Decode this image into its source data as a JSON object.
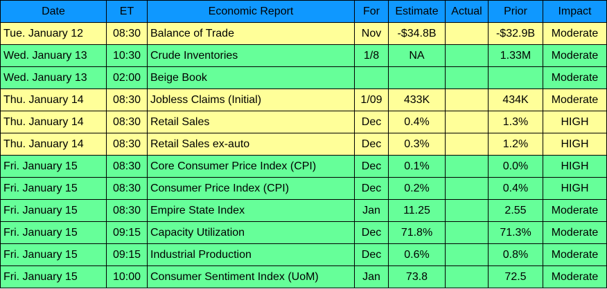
{
  "columns": {
    "date": "Date",
    "et": "ET",
    "report": "Economic Report",
    "for": "For",
    "estimate": "Estimate",
    "actual": "Actual",
    "prior": "Prior",
    "impact": "Impact"
  },
  "colors": {
    "header": "#0f98ff",
    "yellow_row": "#ffff99",
    "green_row": "#66ff99"
  },
  "rows": [
    {
      "date": "Tue. January 12",
      "et": "08:30",
      "report": "Balance of Trade",
      "for": "Nov",
      "estimate": "-$34.8B",
      "actual": "",
      "prior": "-$32.9B",
      "impact": "Moderate",
      "color": "yellow"
    },
    {
      "date": "Wed. January 13",
      "et": "10:30",
      "report": "Crude Inventories",
      "for": "1/8",
      "estimate": "NA",
      "actual": "",
      "prior": "1.33M",
      "impact": "Moderate",
      "color": "green"
    },
    {
      "date": "Wed. January 13",
      "et": "02:00",
      "report": "Beige Book",
      "for": "",
      "estimate": "",
      "actual": "",
      "prior": "",
      "impact": "Moderate",
      "color": "green"
    },
    {
      "date": "Thu. January 14",
      "et": "08:30",
      "report": "Jobless Claims (Initial)",
      "for": "1/09",
      "estimate": "433K",
      "actual": "",
      "prior": "434K",
      "impact": "Moderate",
      "color": "yellow"
    },
    {
      "date": "Thu. January 14",
      "et": "08:30",
      "report": "Retail Sales",
      "for": "Dec",
      "estimate": "0.4%",
      "actual": "",
      "prior": "1.3%",
      "impact": "HIGH",
      "color": "yellow"
    },
    {
      "date": "Thu. January 14",
      "et": "08:30",
      "report": "Retail Sales ex-auto",
      "for": "Dec",
      "estimate": "0.3%",
      "actual": "",
      "prior": "1.2%",
      "impact": "HIGH",
      "color": "yellow"
    },
    {
      "date": "Fri. January 15",
      "et": "08:30",
      "report": "Core Consumer Price Index (CPI)",
      "for": "Dec",
      "estimate": "0.1%",
      "actual": "",
      "prior": "0.0%",
      "impact": "HIGH",
      "color": "green"
    },
    {
      "date": "Fri. January 15",
      "et": "08:30",
      "report": "Consumer Price Index (CPI)",
      "for": "Dec",
      "estimate": "0.2%",
      "actual": "",
      "prior": "0.4%",
      "impact": "HIGH",
      "color": "green"
    },
    {
      "date": "Fri. January 15",
      "et": "08:30",
      "report": "Empire State Index",
      "for": "Jan",
      "estimate": "11.25",
      "actual": "",
      "prior": "2.55",
      "impact": "Moderate",
      "color": "green"
    },
    {
      "date": "Fri. January 15",
      "et": "09:15",
      "report": "Capacity Utilization",
      "for": "Dec",
      "estimate": "71.8%",
      "actual": "",
      "prior": "71.3%",
      "impact": "Moderate",
      "color": "green"
    },
    {
      "date": "Fri. January 15",
      "et": "09:15",
      "report": "Industrial Production",
      "for": "Dec",
      "estimate": "0.6%",
      "actual": "",
      "prior": "0.8%",
      "impact": "Moderate",
      "color": "green"
    },
    {
      "date": "Fri. January 15",
      "et": "10:00",
      "report": "Consumer Sentiment Index (UoM)",
      "for": "Jan",
      "estimate": "73.8",
      "actual": "",
      "prior": "72.5",
      "impact": "Moderate",
      "color": "green"
    }
  ]
}
